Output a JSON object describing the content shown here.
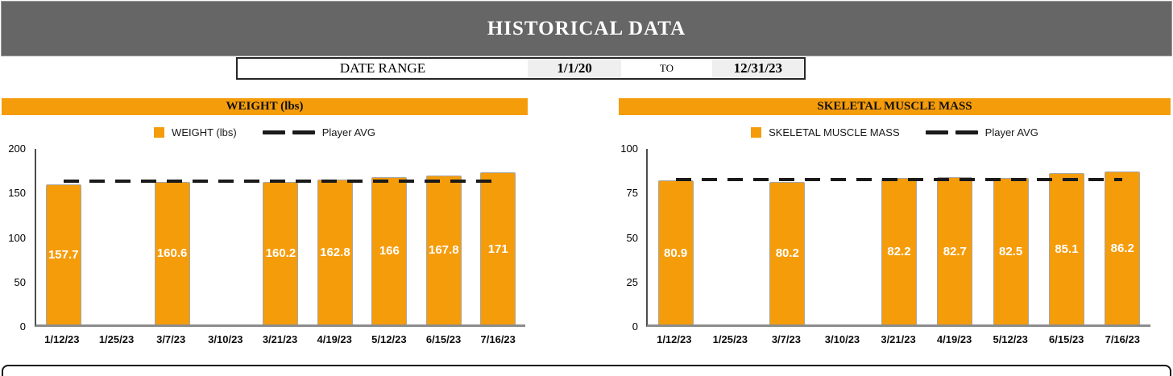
{
  "header": {
    "title": "HISTORICAL DATA"
  },
  "date_range": {
    "label": "DATE RANGE",
    "from_value": "1/1/20",
    "to_label": "TO",
    "to_value": "12/31/23"
  },
  "colors": {
    "accent_orange": "#f59c0b",
    "header_gray": "#666666",
    "avg_line_dark": "#1a1a1a",
    "bar_border_gray": "#a6a6a6",
    "date_cell_gray": "#efefef"
  },
  "chart_data": [
    {
      "type": "bar",
      "title": "WEIGHT (lbs)",
      "series_label": "WEIGHT (lbs)",
      "avg_label": "Player AVG",
      "categories": [
        "1/12/23",
        "1/25/23",
        "3/7/23",
        "3/10/23",
        "3/21/23",
        "4/19/23",
        "5/12/23",
        "6/15/23",
        "7/16/23"
      ],
      "values": [
        157.7,
        null,
        160.6,
        null,
        160.2,
        162.8,
        166,
        167.8,
        171
      ],
      "data_labels": [
        "157.7",
        "",
        "160.6",
        "",
        "160.2",
        "162.8",
        "166",
        "167.8",
        "171"
      ],
      "player_avg": 163.7,
      "ylim": [
        0,
        200
      ],
      "yticks": [
        0,
        50,
        100,
        150,
        200
      ],
      "legend_position": "top",
      "grid": false
    },
    {
      "type": "bar",
      "title": "SKELETAL MUSCLE MASS",
      "series_label": "SKELETAL MUSCLE MASS",
      "avg_label": "Player AVG",
      "categories": [
        "1/12/23",
        "1/25/23",
        "3/7/23",
        "3/10/23",
        "3/21/23",
        "4/19/23",
        "5/12/23",
        "6/15/23",
        "7/16/23"
      ],
      "values": [
        80.9,
        null,
        80.2,
        null,
        82.2,
        82.7,
        82.5,
        85.1,
        86.2
      ],
      "data_labels": [
        "80.9",
        "",
        "80.2",
        "",
        "82.2",
        "82.7",
        "82.5",
        "85.1",
        "86.2"
      ],
      "player_avg": 82.8,
      "ylim": [
        0,
        100
      ],
      "yticks": [
        0,
        25,
        50,
        75,
        100
      ],
      "legend_position": "top",
      "grid": false
    }
  ]
}
